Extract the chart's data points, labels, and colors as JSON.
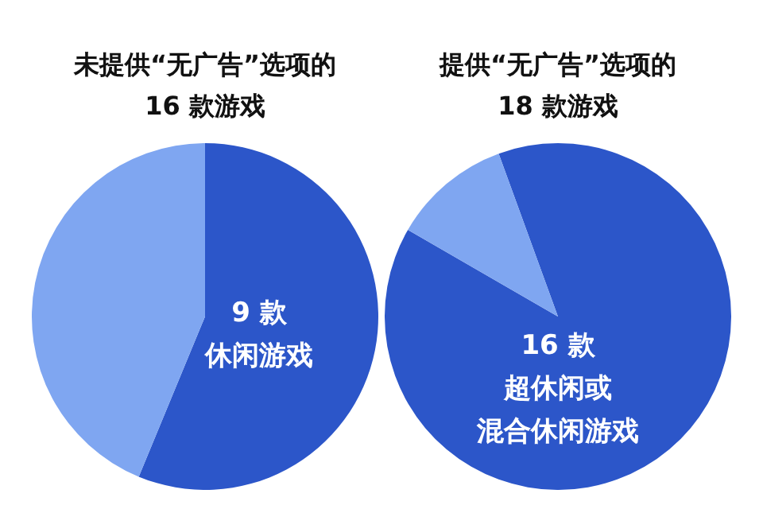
{
  "chart_data": [
    {
      "type": "pie",
      "title": "未提供“无广告”选项的\n16 款游戏",
      "categories": [
        "休闲游戏",
        null
      ],
      "values": [
        9,
        7
      ],
      "colors": [
        "#2c56c9",
        "#7fa6f1"
      ],
      "value_labels": [
        "9 款",
        null
      ],
      "legend": false
    },
    {
      "type": "pie",
      "title": "提供“无广告”选项的\n18 款游戏",
      "categories": [
        "超休闲或混合休闲游戏",
        null
      ],
      "values": [
        16,
        2
      ],
      "colors": [
        "#2c56c9",
        "#7fa6f1"
      ],
      "value_labels": [
        "16 款",
        null
      ],
      "legend": false
    }
  ]
}
